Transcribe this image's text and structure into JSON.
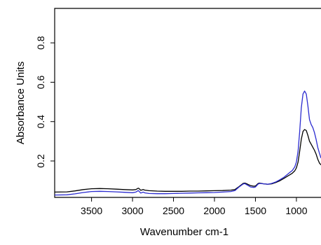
{
  "chart_data": {
    "type": "line",
    "title": "",
    "xlabel": "Wavenumber cm-1",
    "ylabel": "Absorbance Units",
    "xlim": [
      3950,
      700
    ],
    "ylim": [
      0.015,
      0.975
    ],
    "x_reversed": true,
    "grid": false,
    "legend": "none",
    "x_ticks": [
      3500,
      3000,
      2500,
      2000,
      1500,
      1000
    ],
    "x_tick_labels": [
      "3500",
      "3000",
      "2500",
      "2000",
      "1500",
      "1000"
    ],
    "y_ticks": [
      0.2,
      0.4,
      0.6,
      0.8
    ],
    "y_tick_labels": [
      "0.2",
      "0.4",
      "0.6",
      "0.8"
    ],
    "series": [
      {
        "color": "#000000",
        "x": [
          3950,
          3800,
          3700,
          3600,
          3500,
          3400,
          3300,
          3200,
          3100,
          3000,
          2960,
          2930,
          2920,
          2900,
          2870,
          2850,
          2800,
          2700,
          2600,
          2500,
          2400,
          2300,
          2200,
          2100,
          2000,
          1900,
          1800,
          1750,
          1700,
          1650,
          1630,
          1600,
          1560,
          1520,
          1500,
          1470,
          1450,
          1400,
          1350,
          1300,
          1250,
          1200,
          1150,
          1100,
          1080,
          1050,
          1020,
          1000,
          980,
          960,
          940,
          920,
          900,
          880,
          860,
          840,
          820,
          800,
          780,
          760,
          740,
          720,
          700
        ],
        "y": [
          0.042,
          0.043,
          0.048,
          0.055,
          0.059,
          0.06,
          0.059,
          0.057,
          0.055,
          0.053,
          0.055,
          0.062,
          0.06,
          0.051,
          0.055,
          0.052,
          0.049,
          0.047,
          0.046,
          0.046,
          0.046,
          0.047,
          0.047,
          0.048,
          0.049,
          0.05,
          0.052,
          0.055,
          0.07,
          0.086,
          0.088,
          0.083,
          0.075,
          0.072,
          0.073,
          0.085,
          0.088,
          0.084,
          0.082,
          0.084,
          0.091,
          0.1,
          0.112,
          0.125,
          0.13,
          0.138,
          0.15,
          0.165,
          0.195,
          0.25,
          0.31,
          0.35,
          0.36,
          0.355,
          0.33,
          0.3,
          0.285,
          0.27,
          0.255,
          0.235,
          0.21,
          0.19,
          0.18
        ]
      },
      {
        "color": "#2b2bd0",
        "x": [
          3950,
          3800,
          3700,
          3600,
          3500,
          3400,
          3300,
          3200,
          3100,
          3000,
          2960,
          2930,
          2920,
          2900,
          2870,
          2850,
          2800,
          2700,
          2600,
          2500,
          2400,
          2300,
          2200,
          2100,
          2000,
          1900,
          1800,
          1750,
          1700,
          1650,
          1630,
          1600,
          1560,
          1520,
          1500,
          1470,
          1450,
          1400,
          1350,
          1300,
          1250,
          1200,
          1150,
          1100,
          1080,
          1050,
          1020,
          1000,
          980,
          960,
          940,
          920,
          900,
          880,
          860,
          840,
          820,
          800,
          780,
          760,
          740,
          720,
          700
        ],
        "y": [
          0.027,
          0.028,
          0.033,
          0.04,
          0.045,
          0.046,
          0.045,
          0.043,
          0.041,
          0.039,
          0.042,
          0.05,
          0.046,
          0.037,
          0.042,
          0.038,
          0.035,
          0.034,
          0.034,
          0.035,
          0.036,
          0.037,
          0.038,
          0.039,
          0.04,
          0.042,
          0.045,
          0.05,
          0.068,
          0.083,
          0.085,
          0.078,
          0.068,
          0.066,
          0.068,
          0.082,
          0.086,
          0.084,
          0.082,
          0.086,
          0.094,
          0.105,
          0.118,
          0.135,
          0.142,
          0.152,
          0.17,
          0.195,
          0.25,
          0.35,
          0.47,
          0.54,
          0.555,
          0.54,
          0.48,
          0.41,
          0.385,
          0.37,
          0.345,
          0.31,
          0.27,
          0.24,
          0.215
        ]
      }
    ]
  }
}
